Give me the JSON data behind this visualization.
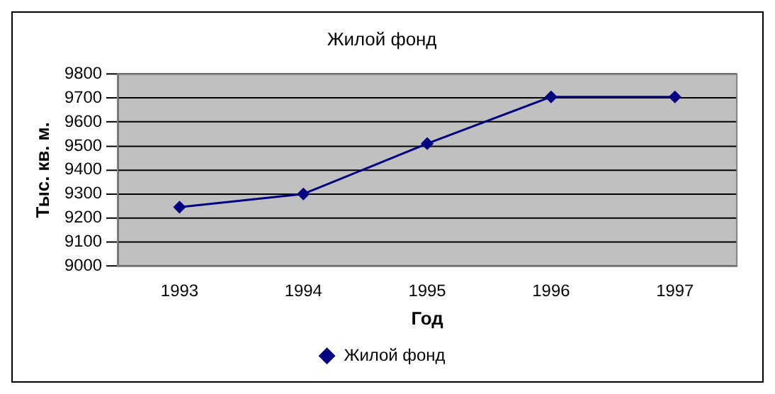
{
  "chart_data": {
    "type": "line",
    "title": "Жилой фонд",
    "xlabel": "Год",
    "ylabel": "Тыс. кв. м.",
    "categories": [
      "1993",
      "1994",
      "1995",
      "1996",
      "1997"
    ],
    "series": [
      {
        "name": "Жилой фонд",
        "color": "#000080",
        "values": [
          9245,
          9300,
          9510,
          9705,
          9705
        ]
      }
    ],
    "ylim": [
      9000,
      9800
    ],
    "yticks": [
      9000,
      9100,
      9200,
      9300,
      9400,
      9500,
      9600,
      9700,
      9800
    ],
    "grid": "y",
    "legend": "bottom",
    "marker": "diamond",
    "line_style": "solid"
  }
}
